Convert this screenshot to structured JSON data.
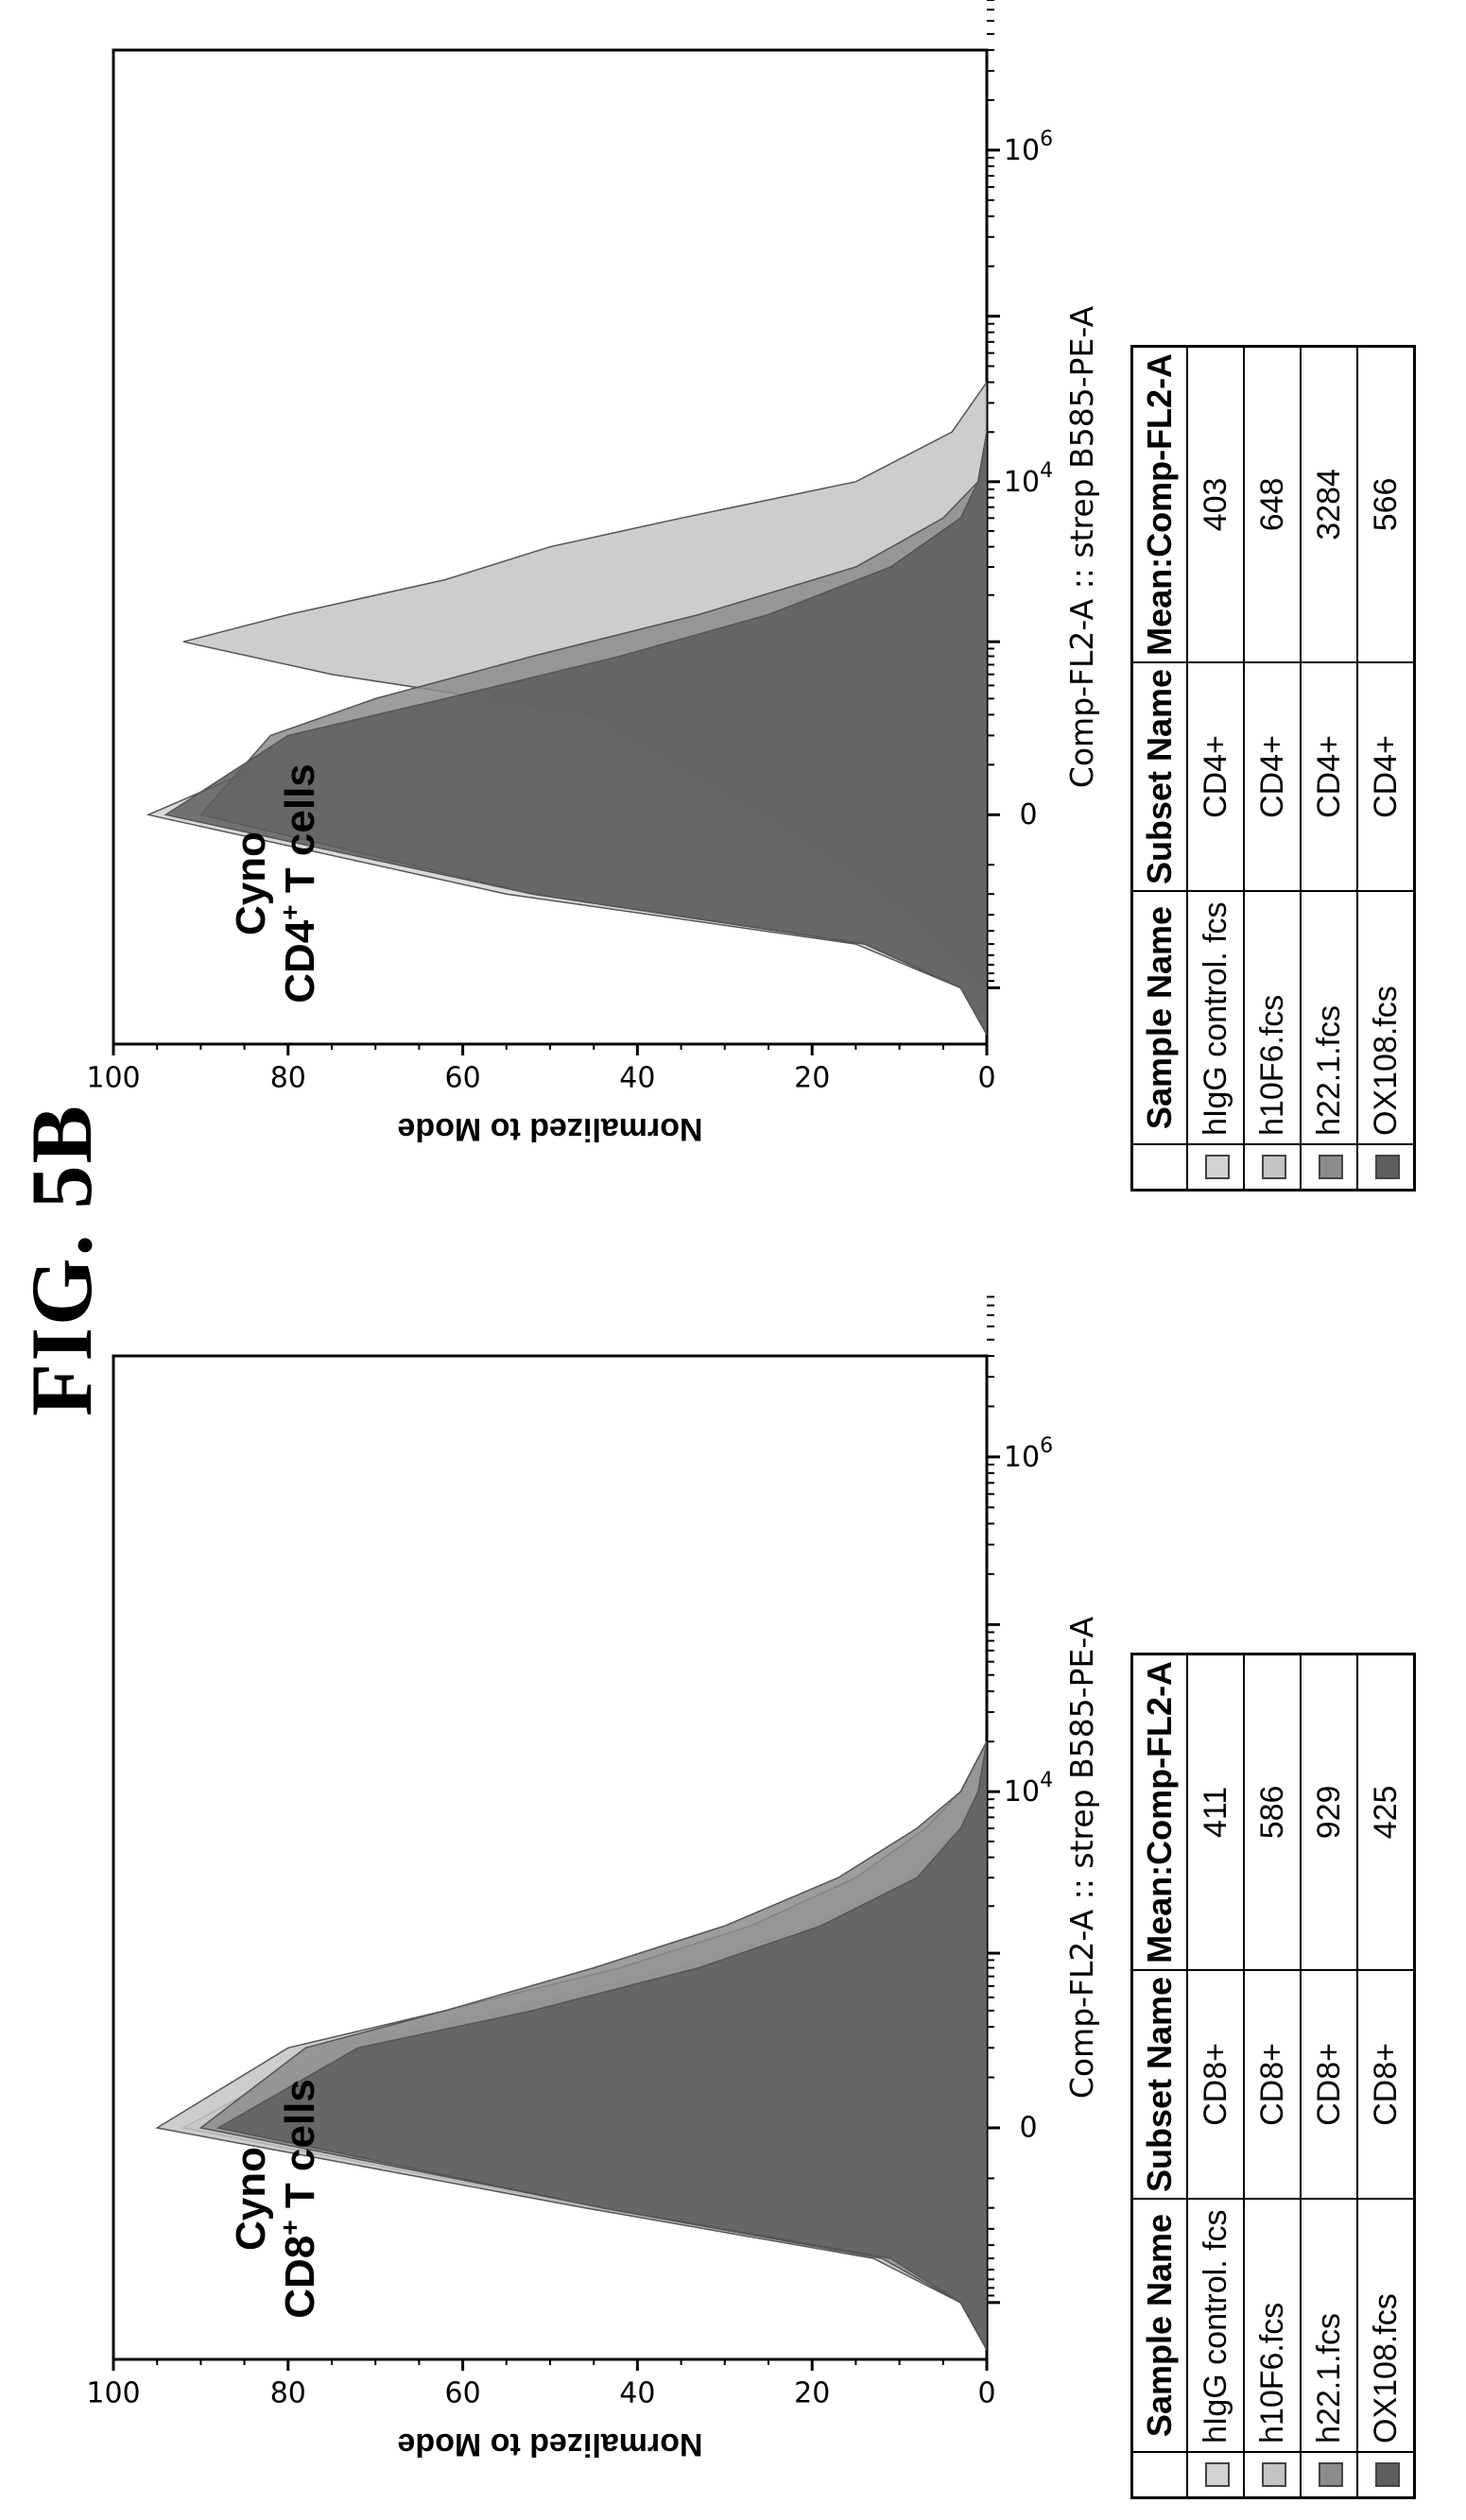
{
  "figure_title": "FIG. 5B",
  "chart_data": [
    {
      "type": "area",
      "panel": "left",
      "annotation_line1": "Cyno",
      "annotation_line2_prefix": "CD8",
      "annotation_line2_sup": "+",
      "annotation_line2_suffix": " T cells",
      "xlabel": "Comp-FL2-A :: strep B585-PE-A",
      "ylabel": "Normalized to Mode",
      "ylim": [
        0,
        100
      ],
      "y_ticks": [
        "0",
        "20",
        "40",
        "60",
        "80",
        "100"
      ],
      "x_tick_labels": [
        "0",
        "10",
        "4",
        "10",
        "6"
      ],
      "x_scale": "biexponential",
      "series": [
        {
          "name": "hIgG control. fcs",
          "color": "#d2d2d2",
          "x": [
            -2000,
            -1000,
            -500,
            -200,
            0,
            200,
            400,
            800,
            1500,
            3000,
            6000,
            10000,
            20000
          ],
          "y": [
            0,
            3,
            12,
            45,
            92,
            75,
            55,
            35,
            20,
            9,
            3,
            1,
            0
          ]
        },
        {
          "name": "h10F6.fcs",
          "color": "#c4c4c4",
          "x": [
            -2000,
            -1000,
            -500,
            -200,
            0,
            200,
            400,
            800,
            1500,
            3000,
            6000,
            10000,
            20000
          ],
          "y": [
            0,
            3,
            13,
            46,
            95,
            80,
            62,
            42,
            27,
            15,
            7,
            3,
            0
          ]
        },
        {
          "name": "h22.1.fcs",
          "color": "#8c8c8c",
          "x": [
            -2000,
            -1000,
            -500,
            -200,
            0,
            200,
            400,
            800,
            1500,
            3000,
            6000,
            10000,
            20000
          ],
          "y": [
            0,
            3,
            12,
            44,
            90,
            78,
            62,
            45,
            30,
            17,
            8,
            3,
            0
          ]
        },
        {
          "name": "OX108.fcs",
          "color": "#5e5e5e",
          "x": [
            -2000,
            -1000,
            -500,
            -200,
            0,
            200,
            400,
            800,
            1500,
            3000,
            6000,
            10000,
            20000
          ],
          "y": [
            0,
            3,
            11,
            44,
            88,
            72,
            52,
            33,
            19,
            8,
            3,
            1,
            0
          ]
        }
      ],
      "table": {
        "headers": [
          "Sample Name",
          "Subset Name",
          "Mean:Comp-FL2-A"
        ],
        "rows": [
          {
            "sample": "hIgG control. fcs",
            "subset": "CD8+",
            "mean": "411"
          },
          {
            "sample": "h10F6.fcs",
            "subset": "CD8+",
            "mean": "586"
          },
          {
            "sample": "h22.1.fcs",
            "subset": "CD8+",
            "mean": "929"
          },
          {
            "sample": "OX108.fcs",
            "subset": "CD8+",
            "mean": "425"
          }
        ]
      }
    },
    {
      "type": "area",
      "panel": "right",
      "annotation_line1": "Cyno",
      "annotation_line2_prefix": "CD4",
      "annotation_line2_sup": "+",
      "annotation_line2_suffix": " T cells",
      "xlabel": "Comp-FL2-A :: strep B585-PE-A",
      "ylabel": "Normalized to Mode",
      "ylim": [
        0,
        100
      ],
      "y_ticks": [
        "0",
        "20",
        "40",
        "60",
        "80",
        "100"
      ],
      "x_tick_labels": [
        "0",
        "10",
        "4",
        "10",
        "6"
      ],
      "x_scale": "biexponential",
      "series": [
        {
          "name": "hIgG control. fcs",
          "color": "#d2d2d2",
          "x": [
            -2000,
            -1000,
            -500,
            -200,
            0,
            200,
            400,
            800,
            1500,
            3000,
            6000,
            10000,
            20000
          ],
          "y": [
            0,
            3,
            15,
            55,
            96,
            75,
            50,
            30,
            15,
            6,
            2,
            0,
            0
          ]
        },
        {
          "name": "h10F6.fcs",
          "color": "#c4c4c4",
          "x": [
            -1000,
            -300,
            0,
            300,
            600,
            1000,
            1500,
            2500,
            4000,
            6000,
            10000,
            20000,
            40000
          ],
          "y": [
            0,
            8,
            25,
            45,
            75,
            92,
            80,
            62,
            50,
            35,
            15,
            4,
            0
          ]
        },
        {
          "name": "h22.1.fcs",
          "color": "#8c8c8c",
          "x": [
            -2000,
            -1000,
            -500,
            -200,
            0,
            200,
            400,
            800,
            1500,
            3000,
            6000,
            10000,
            20000
          ],
          "y": [
            0,
            3,
            14,
            52,
            90,
            82,
            70,
            52,
            33,
            15,
            5,
            1,
            0
          ]
        },
        {
          "name": "OX108.fcs",
          "color": "#5e5e5e",
          "x": [
            -2000,
            -1000,
            -500,
            -200,
            0,
            200,
            400,
            800,
            1500,
            3000,
            6000,
            10000,
            20000
          ],
          "y": [
            0,
            3,
            14,
            52,
            94,
            80,
            62,
            42,
            25,
            11,
            3,
            1,
            0
          ]
        }
      ],
      "table": {
        "headers": [
          "Sample Name",
          "Subset Name",
          "Mean:Comp-FL2-A"
        ],
        "rows": [
          {
            "sample": "hIgG control. fcs",
            "subset": "CD4+",
            "mean": "403"
          },
          {
            "sample": "h10F6.fcs",
            "subset": "CD4+",
            "mean": "648"
          },
          {
            "sample": "h22.1.fcs",
            "subset": "CD4+",
            "mean": "3284"
          },
          {
            "sample": "OX108.fcs",
            "subset": "CD4+",
            "mean": "566"
          }
        ]
      }
    }
  ]
}
